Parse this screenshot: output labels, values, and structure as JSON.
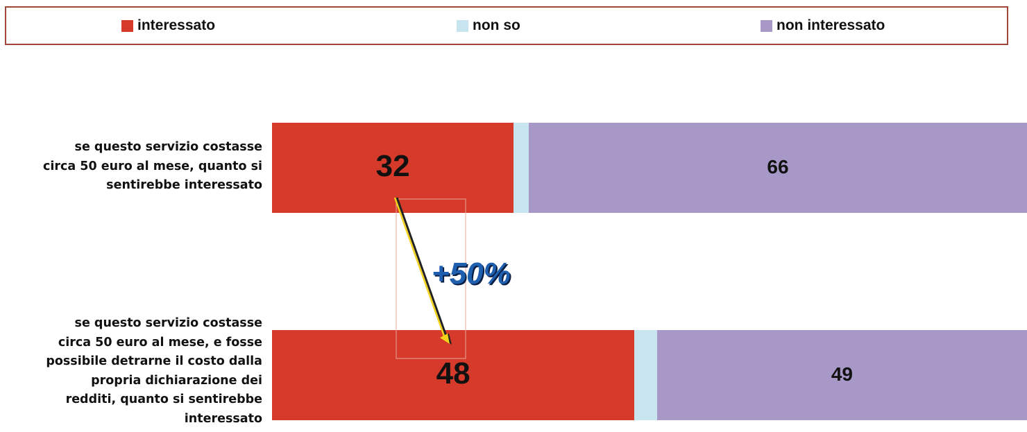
{
  "chart_data": {
    "type": "bar",
    "stacked": true,
    "orientation": "horizontal",
    "categories": [
      "se questo servizio costasse circa 50 euro al mese, quanto si sentirebbe interessato",
      "se questo servizio costasse circa 50 euro al mese, e fosse possibile detrarne il costo dalla propria dichiarazione dei redditi, quanto si sentirebbe interessato"
    ],
    "category_lines": [
      [
        "se questo servizio costasse",
        "circa 50 euro al mese, quanto si",
        "sentirebbe interessato"
      ],
      [
        "se questo servizio costasse",
        "circa 50 euro al mese, e fosse",
        "possibile detrarne il costo dalla",
        "propria dichiarazione dei",
        "redditi, quanto si sentirebbe",
        "interessato"
      ]
    ],
    "series": [
      {
        "name": "interessato",
        "color": "#d63a2a",
        "values": [
          32,
          48
        ]
      },
      {
        "name": "non so",
        "color": "#c8e4ee",
        "values": [
          2,
          3
        ]
      },
      {
        "name": "non interessato",
        "color": "#a898c8",
        "values": [
          66,
          49
        ]
      }
    ],
    "xlim": [
      0,
      100
    ],
    "legend_position": "top",
    "annotation": {
      "text": "+50%",
      "arrow_from": "interessato row 1",
      "arrow_to": "interessato row 2"
    }
  }
}
